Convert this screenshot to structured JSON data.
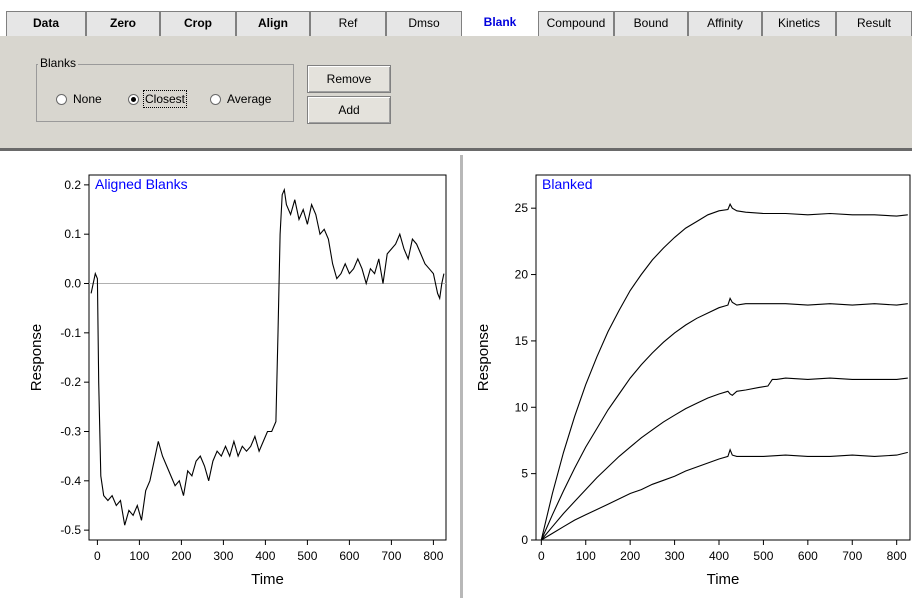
{
  "tabs": [
    {
      "label": "Data",
      "bold": true
    },
    {
      "label": "Zero",
      "bold": true
    },
    {
      "label": "Crop",
      "bold": true
    },
    {
      "label": "Align",
      "bold": true
    },
    {
      "label": "Ref",
      "bold": false
    },
    {
      "label": "Dmso",
      "bold": false
    },
    {
      "label": "Blank",
      "bold": true,
      "active": true
    },
    {
      "label": "Compound",
      "bold": false
    },
    {
      "label": "Bound",
      "bold": false
    },
    {
      "label": "Affinity",
      "bold": false
    },
    {
      "label": "Kinetics",
      "bold": false
    },
    {
      "label": "Result",
      "bold": false
    }
  ],
  "blanks_group": {
    "label": "Blanks",
    "options": [
      {
        "label": "None",
        "selected": false
      },
      {
        "label": "Closest",
        "selected": true
      },
      {
        "label": "Average",
        "selected": false
      }
    ]
  },
  "buttons": {
    "remove": "Remove",
    "add": "Add"
  },
  "colors": {
    "panel": "#d8d6cf",
    "active_tab_text": "#0000dd",
    "plot_title": "#0000ff"
  },
  "chart_data": [
    {
      "type": "line",
      "title": "Aligned Blanks",
      "xlabel": "Time",
      "ylabel": "Response",
      "xlim": [
        -20,
        830
      ],
      "ylim": [
        -0.52,
        0.22
      ],
      "xticks": [
        0,
        100,
        200,
        300,
        400,
        500,
        600,
        700,
        800
      ],
      "yticks": [
        -0.5,
        -0.4,
        -0.3,
        -0.2,
        -0.1,
        0.0,
        0.1,
        0.2
      ],
      "ytick_labels": [
        "-0.5",
        "-0.4",
        "-0.3",
        "-0.2",
        "-0.1",
        "0.0",
        "0.1",
        "0.2"
      ],
      "zero_line": true,
      "series": [
        {
          "x": [
            -15,
            -10,
            -5,
            0,
            3,
            8,
            15,
            25,
            35,
            45,
            55,
            65,
            75,
            85,
            95,
            105,
            115,
            125,
            135,
            145,
            155,
            165,
            175,
            185,
            195,
            205,
            215,
            225,
            235,
            245,
            255,
            265,
            275,
            285,
            295,
            305,
            315,
            325,
            335,
            345,
            355,
            365,
            375,
            385,
            395,
            405,
            415,
            425,
            430,
            435,
            440,
            445,
            450,
            460,
            470,
            480,
            490,
            500,
            510,
            520,
            530,
            540,
            550,
            560,
            570,
            580,
            590,
            600,
            610,
            620,
            630,
            640,
            650,
            660,
            670,
            680,
            690,
            700,
            710,
            720,
            730,
            740,
            750,
            760,
            770,
            780,
            790,
            800,
            810,
            815,
            820,
            825
          ],
          "y": [
            -0.02,
            0.0,
            0.02,
            0.01,
            -0.2,
            -0.39,
            -0.43,
            -0.44,
            -0.43,
            -0.45,
            -0.44,
            -0.49,
            -0.46,
            -0.47,
            -0.45,
            -0.48,
            -0.42,
            -0.4,
            -0.36,
            -0.32,
            -0.35,
            -0.37,
            -0.39,
            -0.41,
            -0.4,
            -0.43,
            -0.38,
            -0.39,
            -0.36,
            -0.35,
            -0.37,
            -0.4,
            -0.36,
            -0.34,
            -0.35,
            -0.33,
            -0.35,
            -0.32,
            -0.35,
            -0.33,
            -0.34,
            -0.33,
            -0.31,
            -0.34,
            -0.32,
            -0.3,
            -0.3,
            -0.28,
            -0.1,
            0.1,
            0.18,
            0.19,
            0.16,
            0.14,
            0.17,
            0.13,
            0.15,
            0.12,
            0.16,
            0.14,
            0.1,
            0.11,
            0.09,
            0.04,
            0.01,
            0.02,
            0.04,
            0.02,
            0.03,
            0.05,
            0.03,
            0.0,
            0.03,
            0.02,
            0.05,
            0.0,
            0.06,
            0.07,
            0.08,
            0.1,
            0.07,
            0.05,
            0.09,
            0.08,
            0.06,
            0.04,
            0.03,
            0.02,
            -0.02,
            -0.03,
            0.0,
            0.02
          ]
        }
      ]
    },
    {
      "type": "line",
      "title": "Blanked",
      "xlabel": "Time",
      "ylabel": "Response",
      "xlim": [
        -12,
        830
      ],
      "ylim": [
        0,
        27.5
      ],
      "xticks": [
        0,
        100,
        200,
        300,
        400,
        500,
        600,
        700,
        800
      ],
      "yticks": [
        0,
        5,
        10,
        15,
        20,
        25
      ],
      "series": [
        {
          "x": [
            0,
            25,
            50,
            75,
            100,
            125,
            150,
            175,
            200,
            225,
            250,
            275,
            300,
            325,
            350,
            375,
            400,
            420,
            425,
            430,
            440,
            460,
            500,
            550,
            600,
            650,
            700,
            750,
            800,
            825
          ],
          "y": [
            0,
            3.5,
            6.6,
            9.3,
            11.7,
            13.8,
            15.7,
            17.3,
            18.8,
            20.0,
            21.1,
            22.0,
            22.8,
            23.5,
            24.0,
            24.5,
            24.8,
            24.9,
            25.3,
            25.0,
            24.8,
            24.7,
            24.6,
            24.6,
            24.5,
            24.6,
            24.5,
            24.5,
            24.4,
            24.5
          ]
        },
        {
          "x": [
            0,
            25,
            50,
            75,
            100,
            125,
            150,
            175,
            200,
            225,
            250,
            275,
            300,
            325,
            350,
            375,
            400,
            420,
            425,
            430,
            440,
            460,
            500,
            550,
            600,
            650,
            700,
            750,
            800,
            825
          ],
          "y": [
            0,
            1.9,
            3.7,
            5.4,
            7.0,
            8.4,
            9.8,
            11.0,
            12.2,
            13.2,
            14.1,
            14.9,
            15.6,
            16.2,
            16.7,
            17.1,
            17.5,
            17.7,
            18.2,
            17.9,
            17.7,
            17.8,
            17.8,
            17.8,
            17.7,
            17.8,
            17.7,
            17.8,
            17.7,
            17.8
          ]
        },
        {
          "x": [
            0,
            25,
            50,
            75,
            100,
            125,
            150,
            175,
            200,
            225,
            250,
            275,
            300,
            325,
            350,
            375,
            400,
            420,
            425,
            430,
            440,
            460,
            490,
            510,
            520,
            530,
            550,
            600,
            650,
            700,
            750,
            800,
            825
          ],
          "y": [
            0,
            1.0,
            2.0,
            2.9,
            3.8,
            4.7,
            5.5,
            6.3,
            7.0,
            7.7,
            8.3,
            8.9,
            9.4,
            9.9,
            10.3,
            10.7,
            11.0,
            11.2,
            11.0,
            10.9,
            11.2,
            11.3,
            11.5,
            11.6,
            12.1,
            12.1,
            12.2,
            12.1,
            12.2,
            12.1,
            12.1,
            12.1,
            12.2
          ]
        },
        {
          "x": [
            0,
            25,
            50,
            75,
            100,
            125,
            150,
            175,
            200,
            225,
            250,
            275,
            300,
            325,
            350,
            375,
            400,
            420,
            425,
            430,
            440,
            460,
            500,
            550,
            600,
            650,
            700,
            750,
            800,
            825
          ],
          "y": [
            0,
            0.5,
            1.0,
            1.5,
            1.9,
            2.3,
            2.7,
            3.1,
            3.5,
            3.8,
            4.2,
            4.5,
            4.8,
            5.2,
            5.5,
            5.8,
            6.1,
            6.3,
            6.8,
            6.4,
            6.3,
            6.3,
            6.3,
            6.4,
            6.3,
            6.3,
            6.4,
            6.3,
            6.4,
            6.6
          ]
        },
        {
          "x": [
            0,
            825
          ],
          "y": [
            0,
            0
          ]
        }
      ]
    }
  ]
}
